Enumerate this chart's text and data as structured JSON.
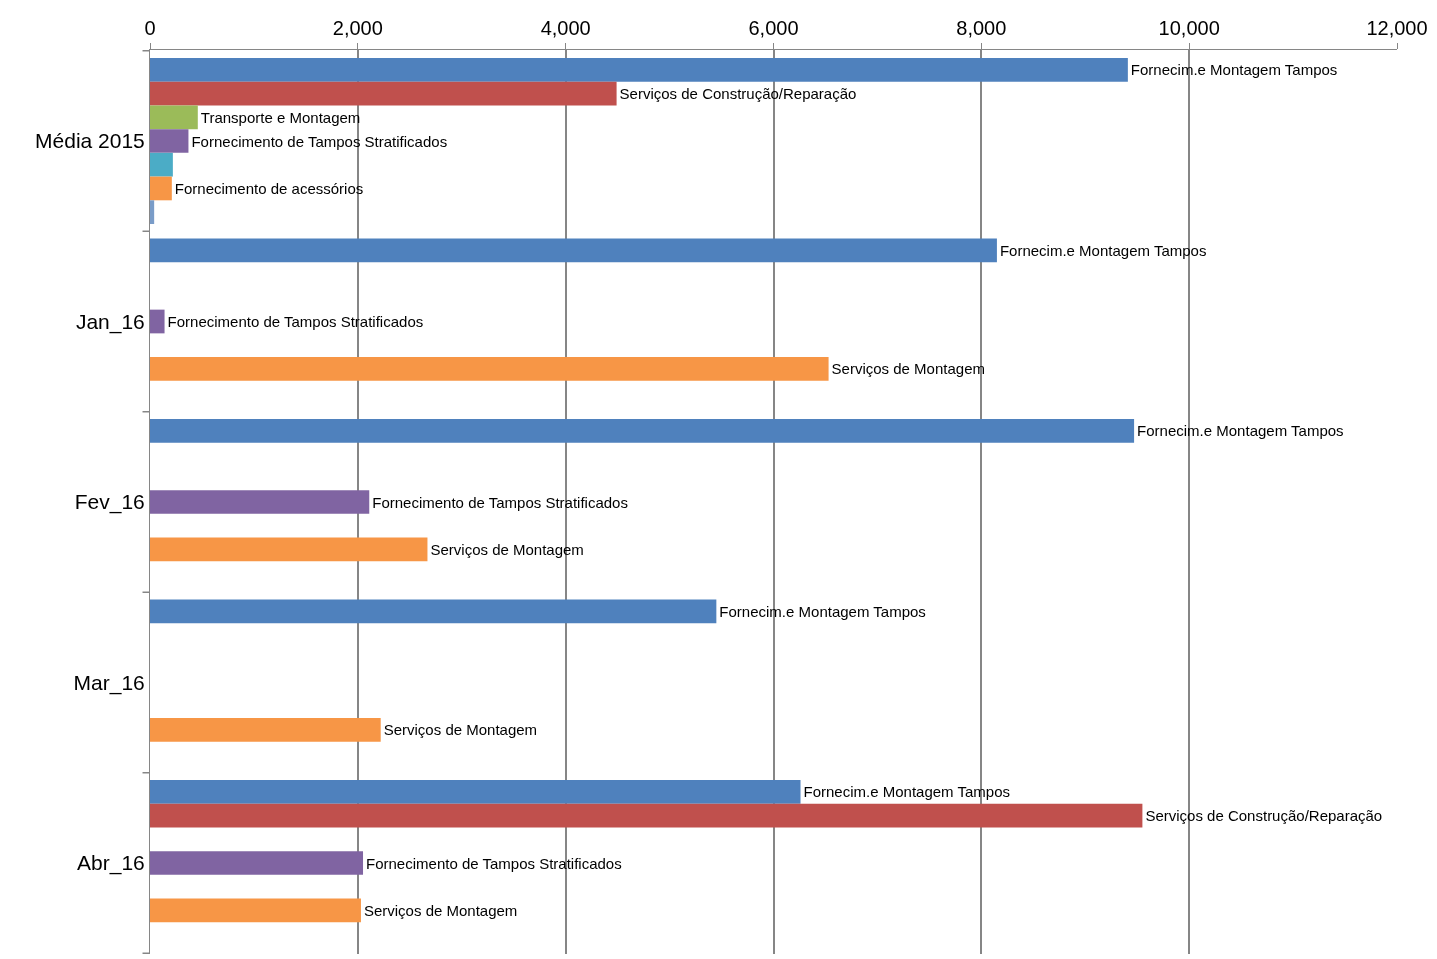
{
  "chart_data": {
    "type": "bar",
    "orientation": "horizontal",
    "categories": [
      "Média 2015",
      "Jan_16",
      "Fev_16",
      "Mar_16",
      "Abr_16"
    ],
    "series": [
      {
        "color": "#4f81bd",
        "values": [
          9410,
          8150,
          9470,
          5450,
          6260
        ],
        "value_labels": [
          "Fornecim.e Montagem Tampos",
          "Fornecim.e Montagem Tampos",
          "Fornecim.e Montagem Tampos",
          "Fornecim.e Montagem Tampos",
          "Fornecim.e Montagem Tampos"
        ]
      },
      {
        "color": "#c0504d",
        "values": [
          4490,
          null,
          null,
          null,
          9550
        ],
        "value_labels": [
          "Serviços de Construção/Reparação",
          null,
          null,
          null,
          "Serviços de Construção/Reparação"
        ]
      },
      {
        "color": "#9bbb59",
        "values": [
          460,
          null,
          null,
          null,
          null
        ],
        "value_labels": [
          "Transporte e Montagem",
          null,
          null,
          null,
          null
        ]
      },
      {
        "color": "#8064a2",
        "values": [
          370,
          140,
          2110,
          null,
          2050
        ],
        "value_labels": [
          "Fornecimento de Tampos Stratificados",
          "Fornecimento de Tampos Stratificados",
          "Fornecimento de Tampos Stratificados",
          null,
          "Fornecimento de Tampos Stratificados"
        ]
      },
      {
        "color": "#4bacc6",
        "values": [
          220,
          null,
          null,
          null,
          null
        ],
        "value_labels": [
          null,
          null,
          null,
          null,
          null
        ]
      },
      {
        "color": "#f79646",
        "values": [
          210,
          6530,
          2670,
          2220,
          2030
        ],
        "value_labels": [
          "Fornecimento de acessórios",
          "Serviços de Montagem",
          "Serviços de Montagem",
          "Serviços de Montagem",
          "Serviços de Montagem"
        ]
      },
      {
        "color": "#7a9cc8",
        "values": [
          40,
          null,
          null,
          null,
          null
        ],
        "value_labels": [
          null,
          null,
          null,
          null,
          null
        ]
      }
    ],
    "xlim": [
      0,
      12000
    ],
    "xticks": [
      {
        "value": 0,
        "label": "0"
      },
      {
        "value": 2000,
        "label": "2,000"
      },
      {
        "value": 4000,
        "label": "4,000"
      },
      {
        "value": 6000,
        "label": "6,000"
      },
      {
        "value": 8000,
        "label": "8,000"
      },
      {
        "value": 10000,
        "label": "10,000"
      },
      {
        "value": 12000,
        "label": "12,000"
      }
    ],
    "grid": "x"
  }
}
